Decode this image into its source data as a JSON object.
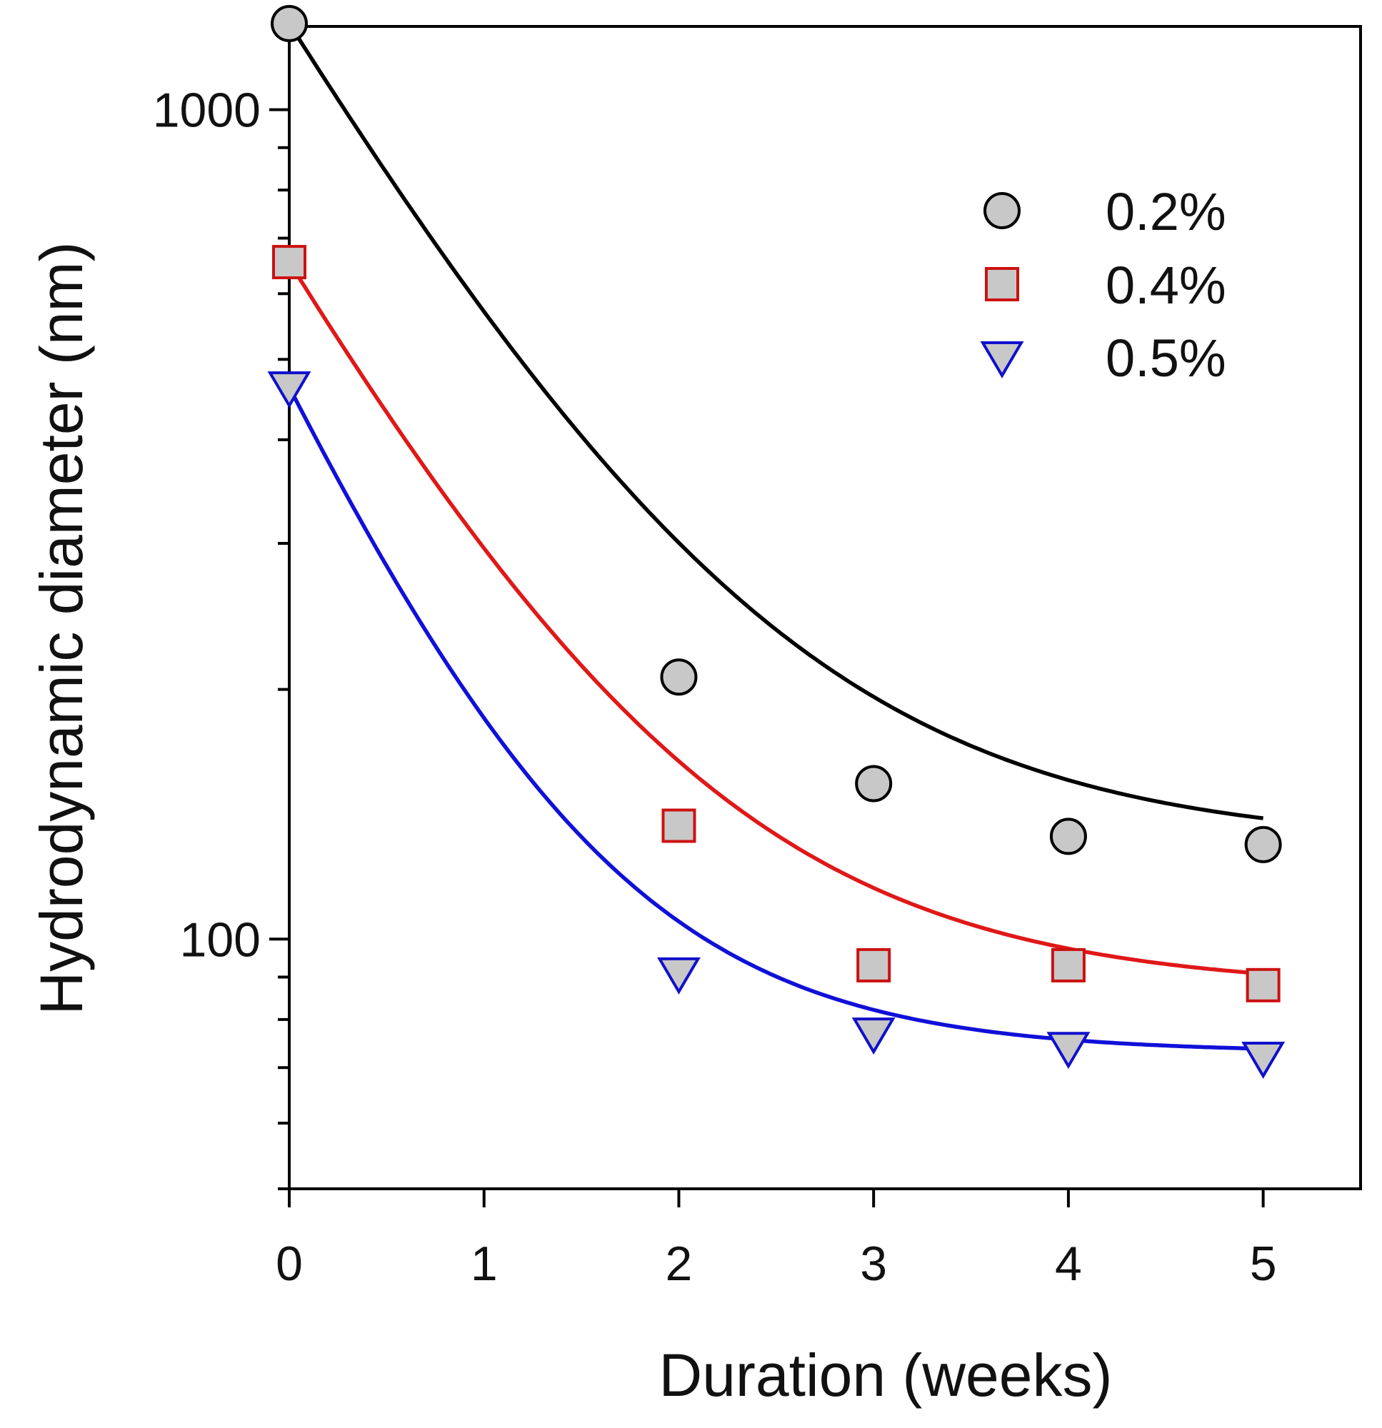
{
  "chart_data": {
    "type": "scatter",
    "title": "",
    "xlabel": "Duration (weeks)",
    "ylabel": "Hydrodynamic diameter (nm)",
    "xlim": [
      0,
      5.5
    ],
    "ylim": [
      50,
      1260
    ],
    "yscale": "log",
    "xticks": [
      0,
      1,
      2,
      3,
      4,
      5
    ],
    "xtick_labels": [
      "0",
      "1",
      "2",
      "3",
      "4",
      "5"
    ],
    "ytick_labels": [
      {
        "value": 100,
        "label": "100"
      },
      {
        "value": 1000,
        "label": "1000"
      }
    ],
    "grid": false,
    "legend_position": "top-right",
    "series": [
      {
        "name": "0.2%",
        "marker": "circle",
        "line_color": "#000000",
        "marker_stroke": "#000000",
        "marker_fill": "#c8c8c8",
        "x": [
          0,
          2,
          3,
          4,
          5
        ],
        "y": [
          1270,
          207,
          154,
          133,
          130
        ],
        "fit": {
          "plateau": 130,
          "amplitude": 1140,
          "k": 0.95
        }
      },
      {
        "name": "0.4%",
        "marker": "square",
        "line_color": "#e01818",
        "marker_stroke": "#cc1111",
        "marker_fill": "#c8c8c8",
        "x": [
          0,
          2,
          3,
          4,
          5
        ],
        "y": [
          655,
          137,
          93,
          93,
          88
        ],
        "fit": {
          "plateau": 87,
          "amplitude": 568,
          "k": 1.0
        }
      },
      {
        "name": "0.5%",
        "marker": "triangle-down",
        "line_color": "#1010d8",
        "marker_stroke": "#1010cc",
        "marker_fill": "#c8c8c8",
        "x": [
          0,
          2,
          3,
          4,
          5
        ],
        "y": [
          463,
          91,
          77,
          74,
          72
        ],
        "fit": {
          "plateau": 73,
          "amplitude": 390,
          "k": 1.25
        }
      }
    ]
  }
}
